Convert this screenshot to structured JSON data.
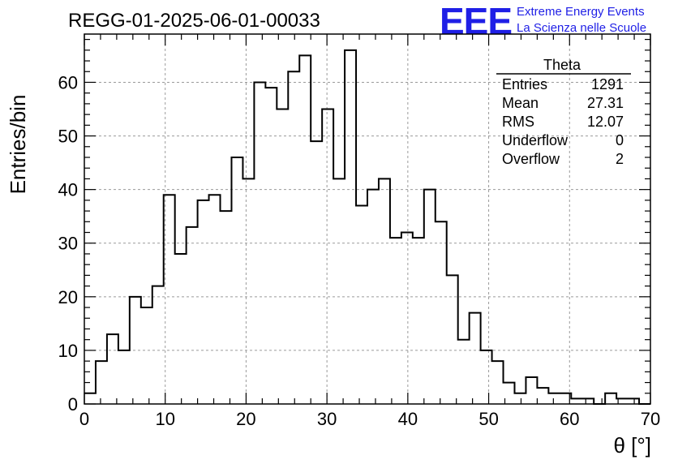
{
  "header": {
    "run_title": "REGG-01-2025-06-01-00033"
  },
  "logo": {
    "mark": "EEE",
    "line1": "Extreme Energy Events",
    "line2": "La Scienza nelle Scuole",
    "color": "#1f1fe6"
  },
  "stats": {
    "title": "Theta",
    "rows": [
      {
        "label": "Entries",
        "value": "1291"
      },
      {
        "label": "Mean",
        "value": "27.31"
      },
      {
        "label": "RMS",
        "value": "12.07"
      },
      {
        "label": "Underflow",
        "value": "0"
      },
      {
        "label": "Overflow",
        "value": "2"
      }
    ]
  },
  "chart_data": {
    "type": "bar",
    "histogram": true,
    "xlabel": "θ [°]",
    "ylabel": "Entries/bin",
    "xlim": [
      0,
      70
    ],
    "ylim": [
      0,
      69
    ],
    "bin_width": 1.4,
    "x_ticks": [
      0,
      10,
      20,
      30,
      40,
      50,
      60,
      70
    ],
    "y_ticks": [
      0,
      10,
      20,
      30,
      40,
      50,
      60
    ],
    "grid": true,
    "values": [
      2,
      8,
      13,
      10,
      20,
      18,
      22,
      39,
      28,
      33,
      38,
      39,
      36,
      46,
      42,
      60,
      59,
      55,
      62,
      65,
      49,
      55,
      42,
      66,
      37,
      40,
      42,
      31,
      32,
      31,
      40,
      34,
      24,
      12,
      17,
      10,
      8,
      4,
      2,
      5,
      3,
      2,
      2,
      1,
      1,
      0,
      2,
      1,
      1,
      0
    ]
  }
}
